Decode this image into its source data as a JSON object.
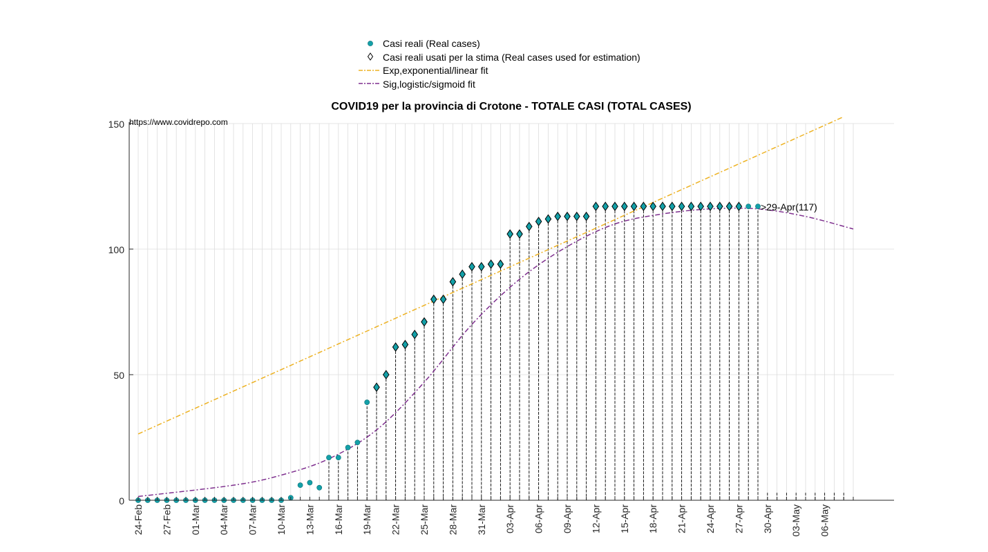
{
  "chart_data": {
    "type": "scatter",
    "title": "COVID19 per la provincia di Crotone - TOTALE CASI (TOTAL CASES)",
    "source_text": "https://www.covidrepo.com",
    "annotation": ">29-Apr(117)",
    "ylim": [
      0,
      150
    ],
    "yticks": [
      0,
      50,
      100,
      150
    ],
    "grid": true,
    "legend_position": "top-center",
    "start_date": "24-Feb",
    "xticks": [
      "24-Feb",
      "27-Feb",
      "01-Mar",
      "04-Mar",
      "07-Mar",
      "10-Mar",
      "13-Mar",
      "16-Mar",
      "19-Mar",
      "22-Mar",
      "25-Mar",
      "28-Mar",
      "31-Mar",
      "03-Apr",
      "06-Apr",
      "09-Apr",
      "12-Apr",
      "15-Apr",
      "18-Apr",
      "21-Apr",
      "24-Apr",
      "27-Apr",
      "30-Apr",
      "03-May",
      "06-May"
    ],
    "legend": [
      {
        "label": "Casi reali (Real cases)",
        "marker": "dot",
        "color": "#14a0a8"
      },
      {
        "label": "Casi reali usati per la stima (Real cases used for estimation)",
        "marker": "diamond",
        "color": "#000000"
      },
      {
        "label": "Exp,exponential/linear fit",
        "marker": "dashdot",
        "color": "#edb120"
      },
      {
        "label": "Sig,logistic/sigmoid fit",
        "marker": "dashdot",
        "color": "#7e2f8e"
      }
    ],
    "series": [
      {
        "name": "Casi reali (Real cases)",
        "values": [
          0,
          0,
          0,
          0,
          0,
          0,
          0,
          0,
          0,
          0,
          0,
          0,
          0,
          0,
          0,
          0,
          1,
          6,
          7,
          5,
          17,
          17,
          21,
          23,
          39,
          45,
          50,
          61,
          62,
          66,
          71,
          80,
          80,
          87,
          90,
          93,
          93,
          94,
          94,
          106,
          106,
          109,
          111,
          112,
          113,
          113,
          113,
          113,
          117,
          117,
          117,
          117,
          117,
          117,
          117,
          117,
          117,
          117,
          117,
          117,
          117,
          117,
          117,
          117,
          117,
          117
        ]
      },
      {
        "name": "Casi reali usati per la stima (Real cases used for estimation)",
        "start_index": 25,
        "end_index": 63
      },
      {
        "name": "Exp,exponential/linear fit",
        "start": [
          0,
          26.4
        ],
        "end": [
          74,
          152.7
        ]
      },
      {
        "name": "Sig,logistic/sigmoid fit",
        "sample": [
          [
            0,
            1.5
          ],
          [
            10,
            6
          ],
          [
            15,
            10
          ],
          [
            20,
            16.5
          ],
          [
            25,
            28
          ],
          [
            30,
            47
          ],
          [
            35,
            70
          ],
          [
            40,
            88
          ],
          [
            45,
            101
          ],
          [
            50,
            110
          ],
          [
            55,
            114
          ],
          [
            60,
            116
          ],
          [
            65,
            116
          ],
          [
            70,
            113
          ],
          [
            75,
            108
          ]
        ]
      }
    ],
    "colors": {
      "real": "#14a0a8",
      "linear": "#edb120",
      "sigmoid": "#7e2f8e",
      "grid": "#dcdcdc",
      "axis": "#262626"
    }
  }
}
